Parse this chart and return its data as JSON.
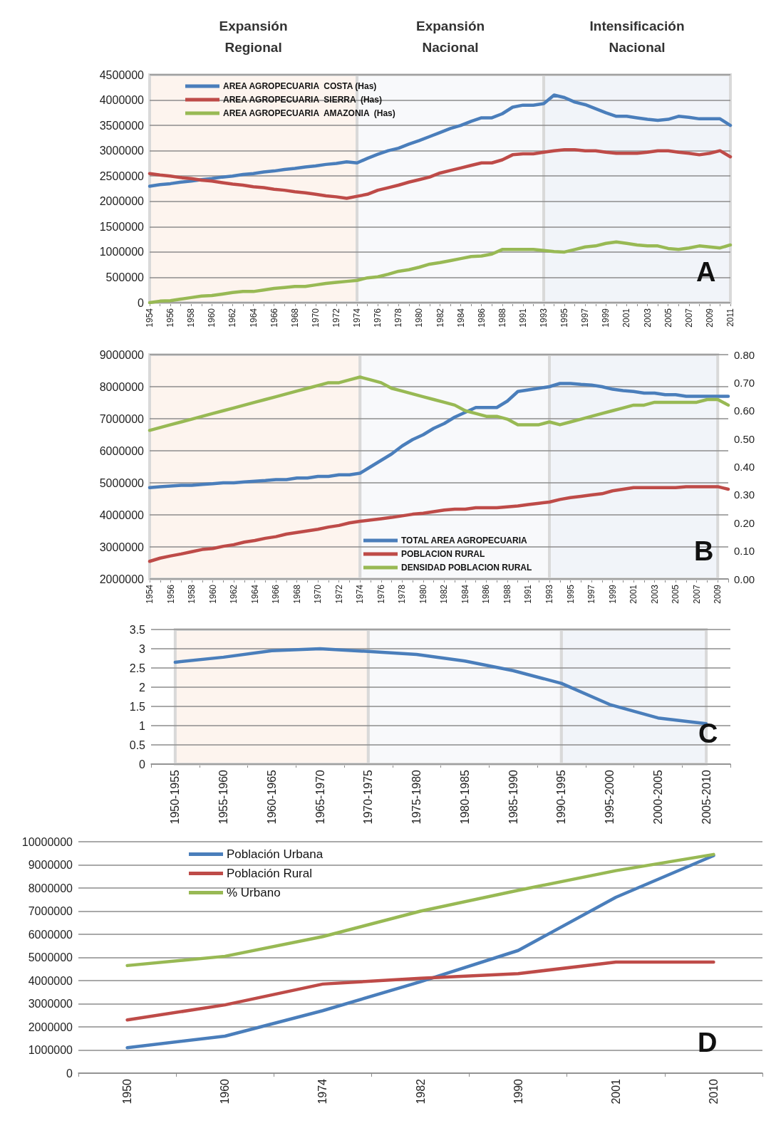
{
  "chart_data": [
    {
      "type": "line",
      "annotations": [
        "A"
      ],
      "bands": [
        {
          "axis": "x",
          "from": "1954",
          "to": "1974",
          "label": "Expansión\nRegional",
          "color": "#fdf4ee"
        },
        {
          "axis": "x",
          "from": "1974",
          "to": "1993",
          "label": "Expansión\nNacional",
          "color": "#f8f9fb"
        },
        {
          "axis": "x",
          "from": "1993",
          "to": "2011",
          "label": "Intensificación\nNacional",
          "color": "#f1f4f9"
        }
      ],
      "categories": [
        "1954",
        null,
        "1956",
        null,
        "1958",
        null,
        "1960",
        null,
        "1962",
        null,
        "1964",
        null,
        "1966",
        null,
        "1968",
        null,
        "1970",
        null,
        "1972",
        null,
        "1974",
        null,
        "1976",
        null,
        "1978",
        null,
        "1980",
        null,
        "1982",
        null,
        "1984",
        null,
        "1986",
        null,
        "1988",
        null,
        "1991",
        null,
        "1993",
        null,
        "1995",
        null,
        "1997",
        null,
        "1999",
        null,
        "2001",
        null,
        "2003",
        null,
        "2005",
        null,
        "2007",
        null,
        "2009",
        null,
        "2011"
      ],
      "series": [
        {
          "name": "AREA AGROPECUARIA  COSTA (Has)",
          "color": "#4a7ebb",
          "values": [
            2300000,
            2330000,
            2350000,
            2380000,
            2400000,
            2430000,
            2450000,
            2480000,
            2500000,
            2530000,
            2550000,
            2580000,
            2600000,
            2630000,
            2650000,
            2680000,
            2700000,
            2730000,
            2750000,
            2780000,
            2760000,
            2850000,
            2930000,
            3000000,
            3050000,
            3130000,
            3200000,
            3280000,
            3360000,
            3440000,
            3500000,
            3580000,
            3650000,
            3650000,
            3730000,
            3860000,
            3900000,
            3900000,
            3930000,
            4100000,
            4050000,
            3960000,
            3910000,
            3830000,
            3750000,
            3680000,
            3680000,
            3650000,
            3620000,
            3600000,
            3620000,
            3680000,
            3660000,
            3630000,
            3630000,
            3630000,
            3500000
          ]
        },
        {
          "name": "AREA AGROPECUARIA  SIERRA  (Has)",
          "color": "#be4b48",
          "values": [
            2550000,
            2520000,
            2500000,
            2470000,
            2450000,
            2420000,
            2400000,
            2370000,
            2340000,
            2320000,
            2290000,
            2270000,
            2240000,
            2220000,
            2190000,
            2170000,
            2140000,
            2110000,
            2090000,
            2060000,
            2100000,
            2140000,
            2220000,
            2270000,
            2320000,
            2380000,
            2430000,
            2480000,
            2560000,
            2610000,
            2660000,
            2710000,
            2760000,
            2760000,
            2820000,
            2920000,
            2940000,
            2940000,
            2970000,
            3000000,
            3020000,
            3020000,
            3000000,
            3000000,
            2970000,
            2950000,
            2950000,
            2950000,
            2970000,
            3000000,
            3000000,
            2970000,
            2950000,
            2920000,
            2950000,
            3000000,
            2880000
          ]
        },
        {
          "name": "AREA AGROPECUARIA  AMAZONIA  (Has)",
          "color": "#98b954",
          "values": [
            0,
            30000,
            40000,
            70000,
            100000,
            130000,
            140000,
            170000,
            200000,
            220000,
            220000,
            250000,
            280000,
            300000,
            320000,
            320000,
            350000,
            380000,
            400000,
            420000,
            440000,
            490000,
            510000,
            560000,
            620000,
            650000,
            700000,
            760000,
            790000,
            830000,
            870000,
            910000,
            920000,
            960000,
            1050000,
            1050000,
            1050000,
            1050000,
            1030000,
            1010000,
            1000000,
            1050000,
            1100000,
            1120000,
            1170000,
            1200000,
            1170000,
            1140000,
            1120000,
            1120000,
            1070000,
            1050000,
            1080000,
            1120000,
            1100000,
            1080000,
            1140000
          ]
        }
      ],
      "ylim": [
        0,
        4500000
      ],
      "yticks": [
        0,
        500000,
        1000000,
        1500000,
        2000000,
        2500000,
        3000000,
        3500000,
        4000000,
        4500000
      ],
      "grid": "y",
      "legend": "top left"
    },
    {
      "type": "line",
      "annotations": [
        "B"
      ],
      "bands": [
        {
          "axis": "x",
          "from": "1954",
          "to": "1974",
          "color": "#fdf4ee"
        },
        {
          "axis": "x",
          "from": "1974",
          "to": "1993",
          "color": "#f8f9fb"
        },
        {
          "axis": "x",
          "from": "1993",
          "to": "2009",
          "color": "#f1f4f9"
        }
      ],
      "categories": [
        "1954",
        null,
        "1956",
        null,
        "1958",
        null,
        "1960",
        null,
        "1962",
        null,
        "1964",
        null,
        "1966",
        null,
        "1968",
        null,
        "1970",
        null,
        "1972",
        null,
        "1974",
        null,
        "1976",
        null,
        "1978",
        null,
        "1980",
        null,
        "1982",
        null,
        "1984",
        null,
        "1986",
        null,
        "1988",
        null,
        "1991",
        null,
        "1993",
        null,
        "1995",
        null,
        "1997",
        null,
        "1999",
        null,
        "2001",
        null,
        "2003",
        null,
        "2005",
        null,
        "2007",
        null,
        "2009",
        null
      ],
      "series": [
        {
          "name": "TOTAL AREA AGROPECUARIA",
          "color": "#4a7ebb",
          "values": [
            4850000,
            4880000,
            4900000,
            4920000,
            4920000,
            4950000,
            4970000,
            5000000,
            5000000,
            5030000,
            5050000,
            5070000,
            5100000,
            5100000,
            5150000,
            5150000,
            5200000,
            5200000,
            5250000,
            5250000,
            5300000,
            5500000,
            5700000,
            5900000,
            6150000,
            6350000,
            6500000,
            6700000,
            6850000,
            7050000,
            7200000,
            7350000,
            7350000,
            7350000,
            7550000,
            7850000,
            7900000,
            7950000,
            8000000,
            8100000,
            8100000,
            8070000,
            8050000,
            8000000,
            7920000,
            7880000,
            7850000,
            7800000,
            7800000,
            7750000,
            7750000,
            7700000,
            7700000,
            7700000,
            7700000,
            7700000
          ]
        },
        {
          "name": "POBLACION RURAL",
          "color": "#be4b48",
          "values": [
            2550000,
            2650000,
            2720000,
            2780000,
            2850000,
            2920000,
            2950000,
            3020000,
            3070000,
            3150000,
            3200000,
            3270000,
            3320000,
            3400000,
            3450000,
            3500000,
            3550000,
            3620000,
            3670000,
            3750000,
            3800000,
            3840000,
            3880000,
            3920000,
            3970000,
            4020000,
            4050000,
            4100000,
            4150000,
            4180000,
            4180000,
            4220000,
            4220000,
            4220000,
            4250000,
            4280000,
            4320000,
            4360000,
            4400000,
            4480000,
            4540000,
            4580000,
            4620000,
            4660000,
            4750000,
            4800000,
            4850000,
            4850000,
            4850000,
            4850000,
            4850000,
            4880000,
            4880000,
            4880000,
            4880000,
            4800000
          ]
        },
        {
          "name": "DENSIDAD POBLACION RURAL",
          "color": "#98b954",
          "axis": "y2",
          "values": [
            0.53,
            0.54,
            0.55,
            0.56,
            0.57,
            0.58,
            0.59,
            0.6,
            0.61,
            0.62,
            0.63,
            0.64,
            0.65,
            0.66,
            0.67,
            0.68,
            0.69,
            0.7,
            0.7,
            0.71,
            0.72,
            0.71,
            0.7,
            0.68,
            0.67,
            0.66,
            0.65,
            0.64,
            0.63,
            0.62,
            0.6,
            0.59,
            0.58,
            0.58,
            0.57,
            0.55,
            0.55,
            0.55,
            0.56,
            0.55,
            0.56,
            0.57,
            0.58,
            0.59,
            0.6,
            0.61,
            0.62,
            0.62,
            0.63,
            0.63,
            0.63,
            0.63,
            0.63,
            0.64,
            0.64,
            0.62
          ]
        }
      ],
      "ylim": [
        2000000,
        9000000
      ],
      "yticks": [
        2000000,
        3000000,
        4000000,
        5000000,
        6000000,
        7000000,
        8000000,
        9000000
      ],
      "y2lim": [
        0,
        0.8
      ],
      "y2ticks": [
        {
          "value": 0,
          "label": "0.00"
        },
        {
          "value": 0.1,
          "label": "0.10"
        },
        {
          "value": 0.2,
          "label": "0.20"
        },
        {
          "value": 0.3,
          "label": "0.30"
        },
        {
          "value": 0.4,
          "label": "0.40"
        },
        {
          "value": 0.5,
          "label": "0.50"
        },
        {
          "value": 0.6,
          "label": "0.60"
        },
        {
          "value": 0.7,
          "label": "0.70"
        },
        {
          "value": 0.8,
          "label": "0.80"
        }
      ],
      "grid": "y",
      "legend": "bottom"
    },
    {
      "type": "line",
      "annotations": [
        "C"
      ],
      "bands": [
        {
          "axis": "x",
          "from": "1950-1955",
          "to": "1970-1975",
          "color": "#fdf4ee"
        },
        {
          "axis": "x",
          "from": "1970-1975",
          "to": "1990-1995",
          "color": "#f8f9fb"
        },
        {
          "axis": "x",
          "from": "1990-1995",
          "to": "2005-2010",
          "color": "#f1f4f9"
        }
      ],
      "categories": [
        "1950-1955",
        "1955-1960",
        "1960-1965",
        "1965-1970",
        "1970-1975",
        "1975-1980",
        "1980-1985",
        "1985-1990",
        "1990-1995",
        "1995-2000",
        "2000-2005",
        "2005-2010"
      ],
      "series": [
        {
          "color": "#4a7ebb",
          "values": [
            2.65,
            2.78,
            2.95,
            3.0,
            2.93,
            2.85,
            2.68,
            2.43,
            2.1,
            1.55,
            1.2,
            1.05
          ]
        }
      ],
      "ylim": [
        0,
        3.5
      ],
      "yticks": [
        0,
        0.5,
        1,
        1.5,
        2,
        2.5,
        3,
        3.5
      ],
      "grid": "y",
      "legend": false
    },
    {
      "type": "line",
      "annotations": [
        "D"
      ],
      "categories": [
        "1950",
        "1960",
        "1974",
        "1982",
        "1990",
        "2001",
        "2010"
      ],
      "series": [
        {
          "name": "Población Urbana",
          "color": "#4a7ebb",
          "values": [
            1100000,
            1600000,
            2700000,
            3950000,
            5300000,
            7600000,
            9400000
          ]
        },
        {
          "name": "Población Rural",
          "color": "#be4b48",
          "values": [
            2300000,
            2950000,
            3850000,
            4100000,
            4300000,
            4800000,
            4800000
          ]
        },
        {
          "name": "% Urbano",
          "color": "#98b954",
          "values": [
            4650000,
            5050000,
            5900000,
            7000000,
            7900000,
            8750000,
            9450000
          ]
        }
      ],
      "ylim": [
        0,
        10000000
      ],
      "yticks": [
        0,
        1000000,
        2000000,
        3000000,
        4000000,
        5000000,
        6000000,
        7000000,
        8000000,
        9000000,
        10000000
      ],
      "grid": "y",
      "legend": "top left"
    }
  ]
}
